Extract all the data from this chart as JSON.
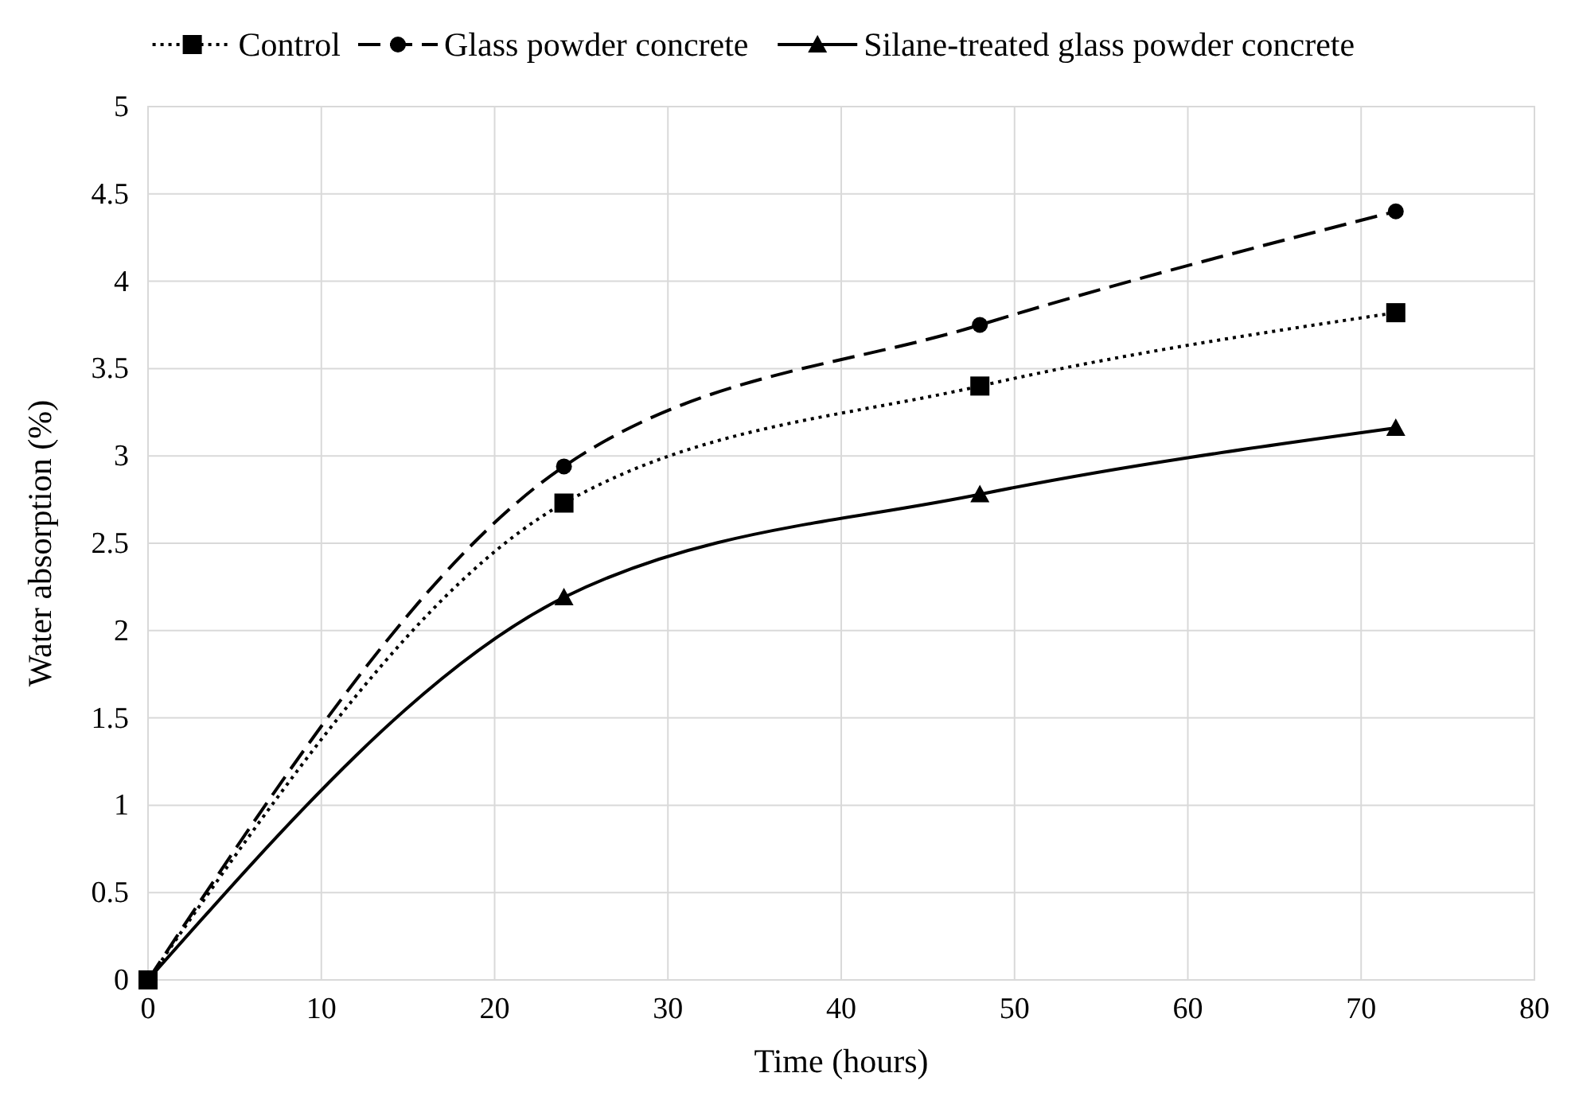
{
  "chart_data": {
    "type": "line",
    "xlabel": "Time (hours)",
    "ylabel": "Water absorption (%)",
    "x": [
      0,
      24,
      48,
      72
    ],
    "series": [
      {
        "name": "Control",
        "color": "#000000",
        "values": [
          0,
          2.73,
          3.4,
          3.82
        ],
        "marker": "square",
        "line_style": "dotted"
      },
      {
        "name": "Glass powder concrete",
        "color": "#000000",
        "values": [
          0,
          2.94,
          3.75,
          4.4
        ],
        "marker": "circle",
        "line_style": "dashed"
      },
      {
        "name": "Silane-treated glass powder concrete",
        "color": "#000000",
        "values": [
          0,
          2.19,
          2.78,
          3.16
        ],
        "marker": "triangle",
        "line_style": "solid"
      }
    ],
    "xlim": [
      0,
      80
    ],
    "xticks": [
      0,
      10,
      20,
      30,
      40,
      50,
      60,
      70,
      80
    ],
    "ylim": [
      0,
      5
    ],
    "yticks": [
      0,
      0.5,
      1,
      1.5,
      2,
      2.5,
      3,
      3.5,
      4,
      4.5,
      5
    ],
    "grid": true,
    "legend": "top"
  }
}
